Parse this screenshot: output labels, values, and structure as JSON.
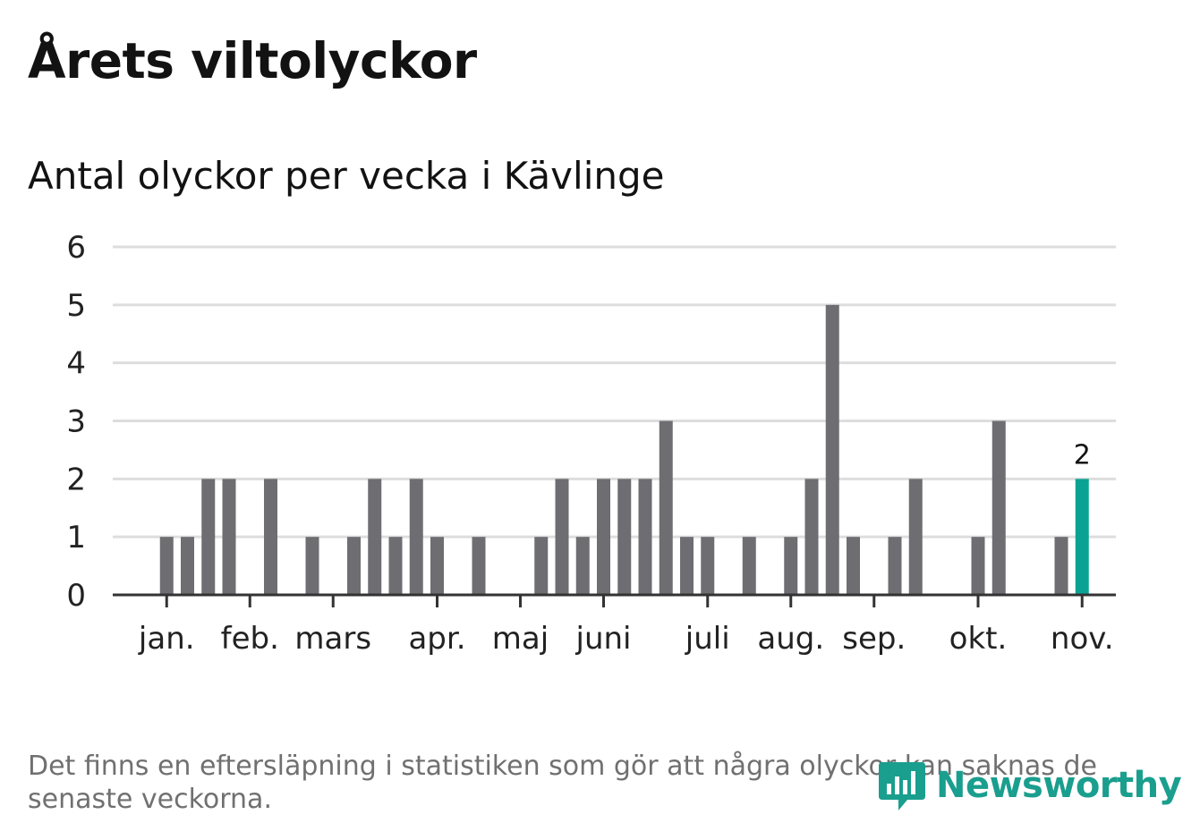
{
  "header": {
    "title": "Årets viltolyckor",
    "subtitle": "Antal olyckor per vecka i Kävlinge"
  },
  "footnote": "Det finns en eftersläpning i statistiken som gör att några olyckor kan saknas de senaste veckorna.",
  "brand": {
    "name": "Newsworthy",
    "color": "#1a9e8e"
  },
  "colors": {
    "bar": "#6e6d72",
    "highlight": "#0aa393",
    "grid": "#dddddd",
    "axis": "#333333",
    "text": "#222222"
  },
  "chart_data": {
    "type": "bar",
    "title": "Antal olyckor per vecka i Kävlinge",
    "xlabel": "",
    "ylabel": "",
    "ylim": [
      0,
      6
    ],
    "yticks": [
      0,
      1,
      2,
      3,
      4,
      5,
      6
    ],
    "weeks": [
      1,
      2,
      3,
      4,
      5,
      6,
      7,
      8,
      9,
      10,
      11,
      12,
      13,
      14,
      15,
      16,
      17,
      18,
      19,
      20,
      21,
      22,
      23,
      24,
      25,
      26,
      27,
      28,
      29,
      30,
      31,
      32,
      33,
      34,
      35,
      36,
      37,
      38,
      39,
      40,
      41,
      42,
      43,
      44,
      45,
      46,
      47
    ],
    "values": [
      0,
      0,
      1,
      1,
      2,
      2,
      0,
      2,
      0,
      1,
      0,
      1,
      2,
      1,
      2,
      1,
      0,
      1,
      0,
      0,
      1,
      2,
      1,
      2,
      2,
      2,
      3,
      1,
      1,
      0,
      1,
      0,
      1,
      2,
      5,
      1,
      0,
      1,
      2,
      0,
      0,
      1,
      3,
      0,
      0,
      1,
      2
    ],
    "highlight_index": 46,
    "highlight_label": "2",
    "month_labels": [
      {
        "label": "jan.",
        "week": 3
      },
      {
        "label": "feb.",
        "week": 7
      },
      {
        "label": "mars",
        "week": 11
      },
      {
        "label": "apr.",
        "week": 16
      },
      {
        "label": "maj",
        "week": 20
      },
      {
        "label": "juni",
        "week": 24
      },
      {
        "label": "juli",
        "week": 29
      },
      {
        "label": "aug.",
        "week": 33
      },
      {
        "label": "sep.",
        "week": 37
      },
      {
        "label": "okt.",
        "week": 42
      },
      {
        "label": "nov.",
        "week": 47
      }
    ]
  }
}
